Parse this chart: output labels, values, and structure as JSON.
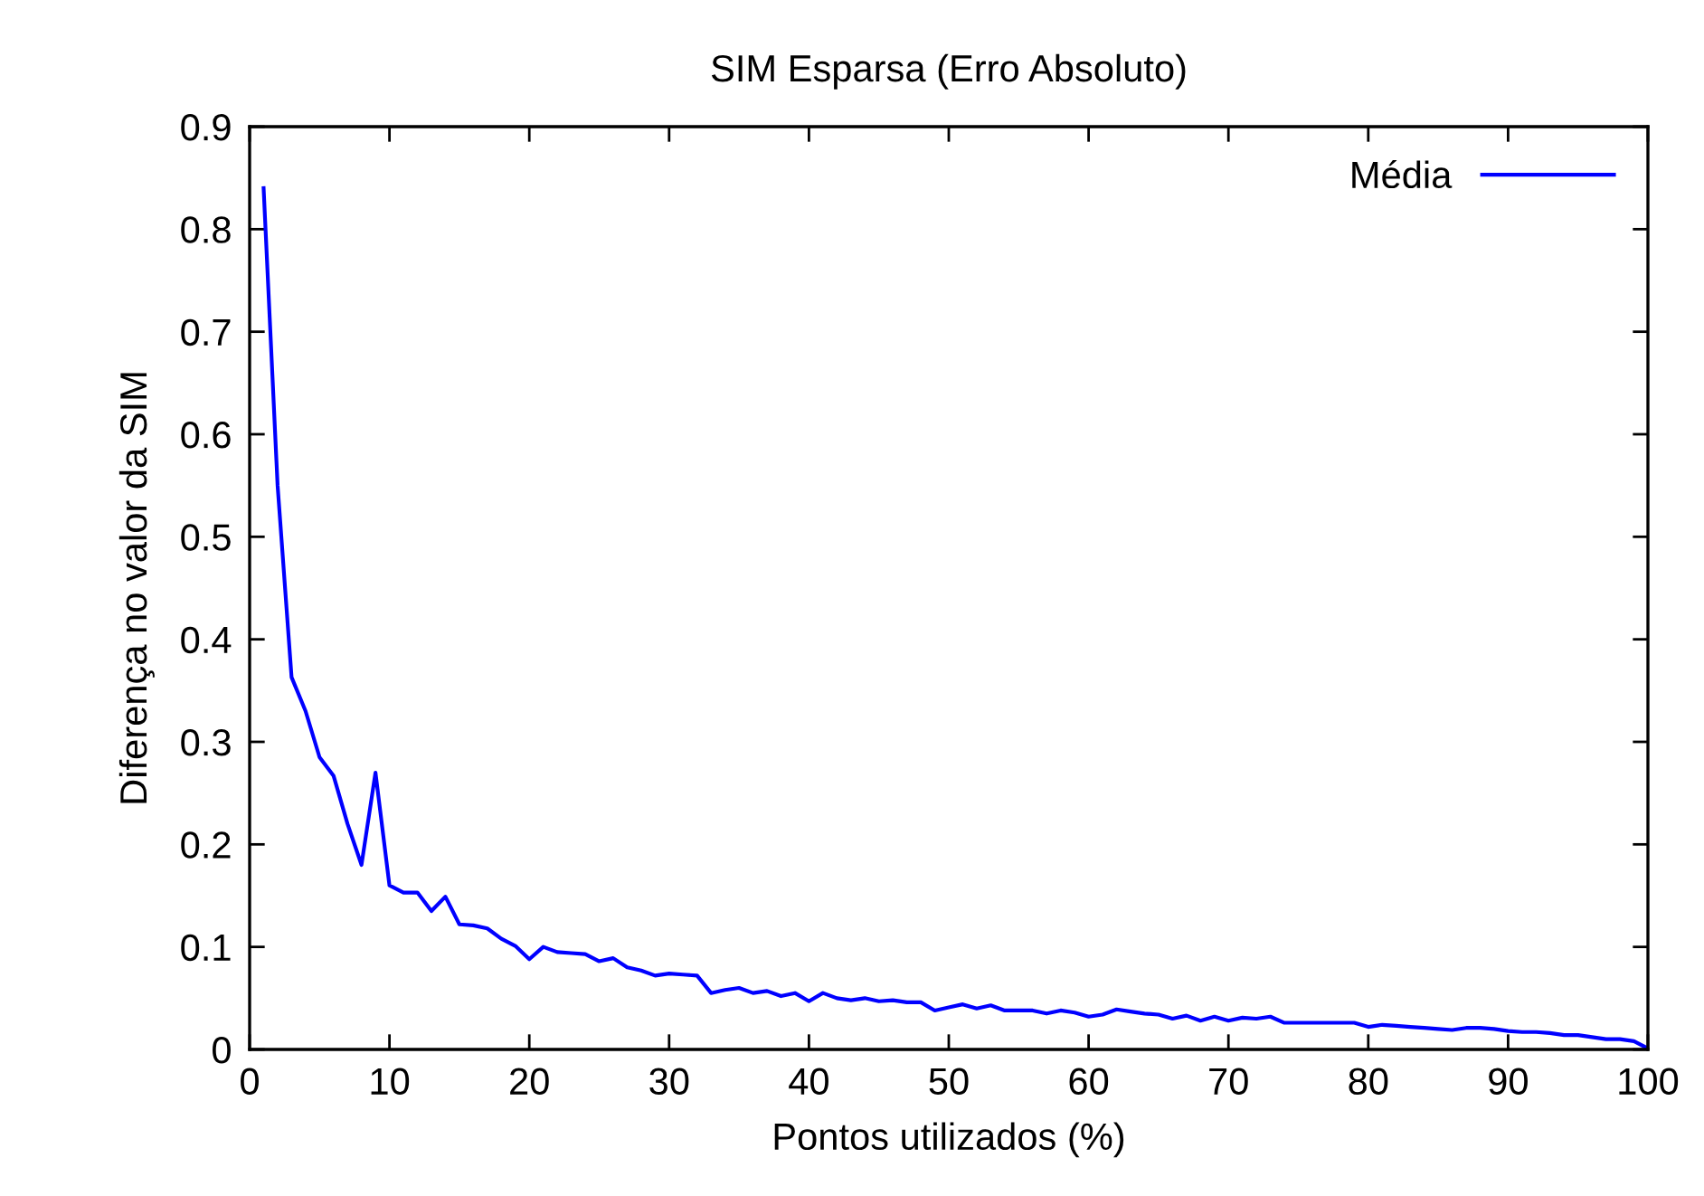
{
  "chart_data": {
    "type": "line",
    "title": "SIM Esparsa (Erro Absoluto)",
    "xlabel": "Pontos utilizados (%)",
    "ylabel": "Diferença no valor da SIM",
    "x": [
      1,
      2,
      3,
      4,
      5,
      6,
      7,
      8,
      9,
      10,
      11,
      12,
      13,
      14,
      15,
      16,
      17,
      18,
      19,
      20,
      21,
      22,
      23,
      24,
      25,
      26,
      27,
      28,
      29,
      30,
      31,
      32,
      33,
      34,
      35,
      36,
      37,
      38,
      39,
      40,
      41,
      42,
      43,
      44,
      45,
      46,
      47,
      48,
      49,
      50,
      51,
      52,
      53,
      54,
      55,
      56,
      57,
      58,
      59,
      60,
      61,
      62,
      63,
      64,
      65,
      66,
      67,
      68,
      69,
      70,
      71,
      72,
      73,
      74,
      75,
      76,
      77,
      78,
      79,
      80,
      81,
      82,
      83,
      84,
      85,
      86,
      87,
      88,
      89,
      90,
      91,
      92,
      93,
      94,
      95,
      96,
      97,
      98,
      99,
      100
    ],
    "series": [
      {
        "name": "Média",
        "color": "#0000ff",
        "values": [
          0.84,
          0.55,
          0.363,
          0.33,
          0.285,
          0.267,
          0.22,
          0.18,
          0.27,
          0.16,
          0.153,
          0.153,
          0.135,
          0.149,
          0.122,
          0.121,
          0.118,
          0.108,
          0.101,
          0.088,
          0.1,
          0.095,
          0.094,
          0.093,
          0.086,
          0.089,
          0.08,
          0.077,
          0.072,
          0.074,
          0.073,
          0.072,
          0.055,
          0.058,
          0.06,
          0.055,
          0.057,
          0.052,
          0.055,
          0.047,
          0.055,
          0.05,
          0.048,
          0.05,
          0.047,
          0.048,
          0.046,
          0.046,
          0.038,
          0.041,
          0.044,
          0.04,
          0.043,
          0.038,
          0.038,
          0.038,
          0.035,
          0.038,
          0.036,
          0.032,
          0.034,
          0.039,
          0.037,
          0.035,
          0.034,
          0.03,
          0.033,
          0.028,
          0.032,
          0.028,
          0.031,
          0.03,
          0.032,
          0.026,
          0.026,
          0.026,
          0.026,
          0.026,
          0.026,
          0.022,
          0.024,
          0.023,
          0.022,
          0.021,
          0.02,
          0.019,
          0.021,
          0.021,
          0.02,
          0.018,
          0.017,
          0.017,
          0.016,
          0.014,
          0.014,
          0.012,
          0.01,
          0.01,
          0.008,
          0.001
        ]
      }
    ],
    "xlim": [
      0,
      100
    ],
    "xticks": [
      0,
      10,
      20,
      30,
      40,
      50,
      60,
      70,
      80,
      90,
      100
    ],
    "ylim": [
      0,
      0.9
    ],
    "yticks": [
      0,
      0.1,
      0.2,
      0.3,
      0.4,
      0.5,
      0.6,
      0.7,
      0.8,
      0.9
    ],
    "grid": false,
    "legend": "top right",
    "marker": "none",
    "line_style": "solid"
  }
}
